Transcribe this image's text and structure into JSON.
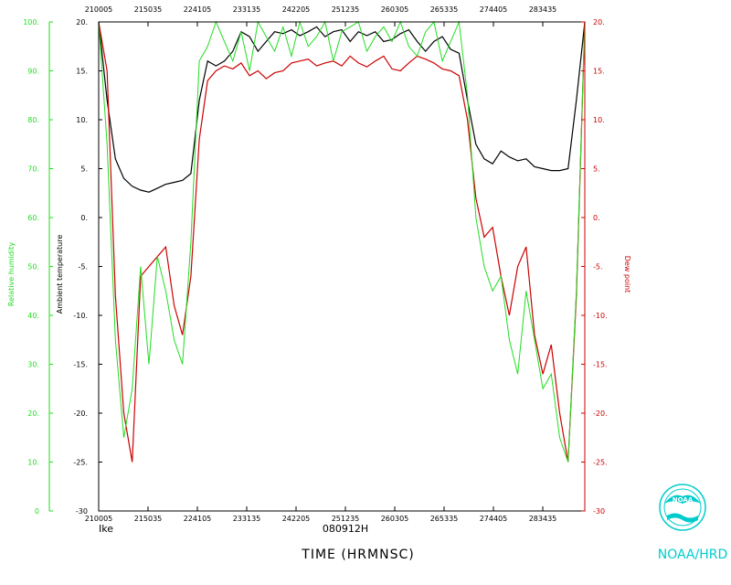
{
  "chart_data": {
    "type": "line",
    "storm": "Ike",
    "date_label": "080912H",
    "xlabel": "TIME (HRMNSC)",
    "x_ticks": [
      "210005",
      "215035",
      "224105",
      "233135",
      "242205",
      "251235",
      "260305",
      "265335",
      "274405",
      "283435"
    ],
    "y_left_outer": {
      "label": "Relative humidity",
      "ylim": [
        0,
        100
      ],
      "ticks": [
        "0",
        "10.",
        "20.",
        "30.",
        "40.",
        "50.",
        "60.",
        "70.",
        "80.",
        "90.",
        "100."
      ],
      "color": "#22dd22"
    },
    "y_left_inner": {
      "label": "Ambient temperature",
      "ylim": [
        -30,
        20
      ],
      "ticks": [
        "-30",
        "-25.",
        "-20.",
        "-15.",
        "-10.",
        "-5.",
        "0.",
        "5.",
        "10.",
        "15.",
        "20."
      ],
      "color": "#000000"
    },
    "y_right": {
      "label": "Dew point",
      "ylim": [
        -30,
        20
      ],
      "ticks": [
        "-30",
        "-25.",
        "-20.",
        "-15.",
        "-10.",
        "-5.",
        "0.",
        "5.",
        "10.",
        "15.",
        "20."
      ],
      "color": "#cc0000"
    },
    "series": [
      {
        "axis": "y_left_inner",
        "color": "#000000",
        "values": [
          20,
          12,
          6,
          4,
          3.2,
          2.8,
          2.6,
          3.0,
          3.4,
          3.6,
          3.8,
          4.5,
          12,
          16,
          15.5,
          16,
          17,
          19,
          18.5,
          17,
          18,
          19,
          18.8,
          19.2,
          18.6,
          19,
          19.5,
          18.5,
          19,
          19.2,
          18,
          19,
          18.6,
          19,
          18,
          18.2,
          18.8,
          19.2,
          18,
          17,
          18,
          18.5,
          17.2,
          16.8,
          12,
          7.5,
          6,
          5.5,
          6.8,
          6.2,
          5.8,
          6.0,
          5.2,
          5.0,
          4.8,
          4.8,
          5.0,
          12,
          20
        ]
      },
      {
        "axis": "y_left_inner",
        "color": "#cc0000",
        "values": [
          20,
          15,
          -8,
          -20,
          -25,
          -6,
          -5,
          -4,
          -3,
          -9,
          -12,
          -6,
          8,
          14,
          15,
          15.5,
          15.2,
          15.8,
          14.5,
          15,
          14.2,
          14.8,
          15,
          15.8,
          16,
          16.2,
          15.5,
          15.8,
          16,
          15.5,
          16.5,
          15.8,
          15.4,
          16,
          16.5,
          15.2,
          15,
          15.8,
          16.5,
          16.2,
          15.8,
          15.2,
          15,
          14.5,
          10,
          2,
          -2,
          -1,
          -6,
          -10,
          -5,
          -3,
          -12,
          -16,
          -13,
          -20,
          -25,
          -8,
          20
        ]
      },
      {
        "axis": "y_left_outer",
        "color": "#22dd22",
        "values": [
          100,
          75,
          35,
          15,
          25,
          50,
          30,
          52,
          45,
          35,
          30,
          55,
          92,
          95,
          100,
          96,
          92,
          98,
          90,
          100,
          97,
          94,
          99,
          93,
          100,
          95,
          97,
          100,
          92,
          98,
          99,
          100,
          94,
          97,
          99,
          96,
          100,
          95,
          93,
          98,
          100,
          92,
          96,
          100,
          85,
          60,
          50,
          45,
          48,
          35,
          28,
          45,
          35,
          25,
          28,
          15,
          10,
          45,
          100
        ]
      }
    ],
    "branding": "NOAA/HRD",
    "logo_text": "NOAA"
  }
}
